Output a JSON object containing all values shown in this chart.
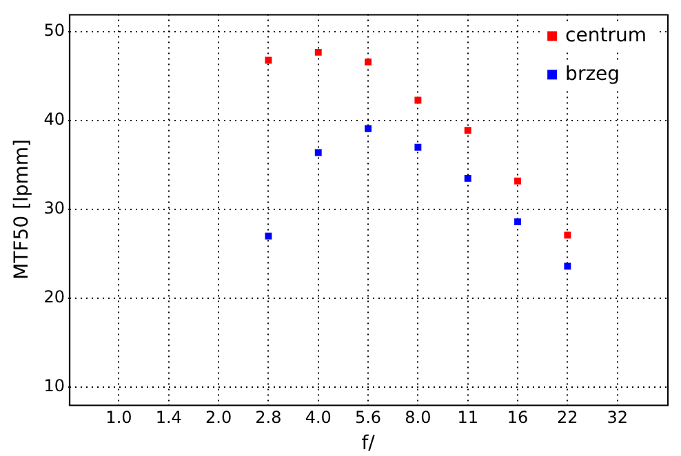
{
  "chart_data": {
    "type": "scatter",
    "xlabel": "f/",
    "ylabel": "MTF50 [lpmm]",
    "categories": [
      "1.0",
      "1.4",
      "2.0",
      "2.8",
      "4.0",
      "5.6",
      "8.0",
      "11",
      "16",
      "22",
      "32"
    ],
    "series": [
      {
        "name": "centrum",
        "color": "#ff0000",
        "values": [
          null,
          null,
          null,
          46.8,
          47.7,
          46.6,
          42.3,
          38.9,
          33.2,
          27.1,
          null
        ]
      },
      {
        "name": "brzeg",
        "color": "#0000ff",
        "values": [
          null,
          null,
          null,
          27.0,
          36.4,
          39.1,
          37.0,
          33.5,
          28.6,
          23.6,
          null
        ]
      }
    ],
    "ylim": [
      8,
      52
    ],
    "yticks": [
      10,
      20,
      30,
      40,
      50
    ],
    "grid": true,
    "legend": "top right",
    "marker": "square"
  }
}
